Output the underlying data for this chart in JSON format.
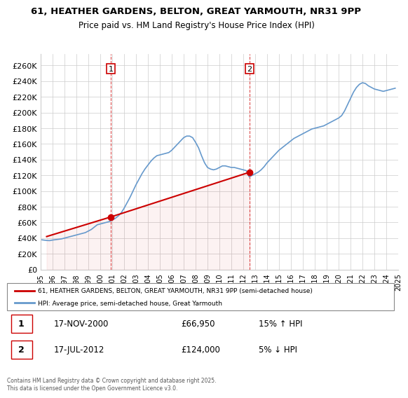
{
  "title": "61, HEATHER GARDENS, BELTON, GREAT YARMOUTH, NR31 9PP",
  "subtitle": "Price paid vs. HM Land Registry's House Price Index (HPI)",
  "xlabel": "",
  "ylabel": "",
  "yticks": [
    0,
    20000,
    40000,
    60000,
    80000,
    100000,
    120000,
    140000,
    160000,
    180000,
    200000,
    220000,
    240000,
    260000
  ],
  "ytick_labels": [
    "£0",
    "£20K",
    "£40K",
    "£60K",
    "£80K",
    "£100K",
    "£120K",
    "£140K",
    "£160K",
    "£180K",
    "£200K",
    "£220K",
    "£240K",
    "£260K"
  ],
  "ylim": [
    0,
    275000
  ],
  "xlim_year": [
    1995,
    2025
  ],
  "xtick_years": [
    1995,
    1996,
    1997,
    1998,
    1999,
    2000,
    2001,
    2002,
    2003,
    2004,
    2005,
    2006,
    2007,
    2008,
    2009,
    2010,
    2011,
    2012,
    2013,
    2014,
    2015,
    2016,
    2017,
    2018,
    2019,
    2020,
    2021,
    2022,
    2023,
    2024,
    2025
  ],
  "red_line_color": "#cc0000",
  "blue_line_color": "#6699cc",
  "grid_color": "#cccccc",
  "background_color": "#ffffff",
  "marker1_year": 2000.88,
  "marker1_value": 66950,
  "marker1_label": "1",
  "marker2_year": 2012.54,
  "marker2_value": 124000,
  "marker2_label": "2",
  "legend1_text": "61, HEATHER GARDENS, BELTON, GREAT YARMOUTH, NR31 9PP (semi-detached house)",
  "legend2_text": "HPI: Average price, semi-detached house, Great Yarmouth",
  "annotation1_num": "1",
  "annotation1_date": "17-NOV-2000",
  "annotation1_price": "£66,950",
  "annotation1_hpi": "15% ↑ HPI",
  "annotation2_num": "2",
  "annotation2_date": "17-JUL-2012",
  "annotation2_price": "£124,000",
  "annotation2_hpi": "5% ↓ HPI",
  "footer_text": "Contains HM Land Registry data © Crown copyright and database right 2025.\nThis data is licensed under the Open Government Licence v3.0.",
  "hpi_data": {
    "years": [
      1995.0,
      1995.25,
      1995.5,
      1995.75,
      1996.0,
      1996.25,
      1996.5,
      1996.75,
      1997.0,
      1997.25,
      1997.5,
      1997.75,
      1998.0,
      1998.25,
      1998.5,
      1998.75,
      1999.0,
      1999.25,
      1999.5,
      1999.75,
      2000.0,
      2000.25,
      2000.5,
      2000.75,
      2001.0,
      2001.25,
      2001.5,
      2001.75,
      2002.0,
      2002.25,
      2002.5,
      2002.75,
      2003.0,
      2003.25,
      2003.5,
      2003.75,
      2004.0,
      2004.25,
      2004.5,
      2004.75,
      2005.0,
      2005.25,
      2005.5,
      2005.75,
      2006.0,
      2006.25,
      2006.5,
      2006.75,
      2007.0,
      2007.25,
      2007.5,
      2007.75,
      2008.0,
      2008.25,
      2008.5,
      2008.75,
      2009.0,
      2009.25,
      2009.5,
      2009.75,
      2010.0,
      2010.25,
      2010.5,
      2010.75,
      2011.0,
      2011.25,
      2011.5,
      2011.75,
      2012.0,
      2012.25,
      2012.5,
      2012.75,
      2013.0,
      2013.25,
      2013.5,
      2013.75,
      2014.0,
      2014.25,
      2014.5,
      2014.75,
      2015.0,
      2015.25,
      2015.5,
      2015.75,
      2016.0,
      2016.25,
      2016.5,
      2016.75,
      2017.0,
      2017.25,
      2017.5,
      2017.75,
      2018.0,
      2018.25,
      2018.5,
      2018.75,
      2019.0,
      2019.25,
      2019.5,
      2019.75,
      2020.0,
      2020.25,
      2020.5,
      2020.75,
      2021.0,
      2021.25,
      2021.5,
      2021.75,
      2022.0,
      2022.25,
      2022.5,
      2022.75,
      2023.0,
      2023.25,
      2023.5,
      2023.75,
      2024.0,
      2024.25,
      2024.5,
      2024.75
    ],
    "values": [
      38000,
      37500,
      37000,
      36800,
      37500,
      38000,
      38500,
      39000,
      40000,
      41000,
      42000,
      43000,
      44000,
      45000,
      46000,
      47000,
      49000,
      51000,
      54000,
      57000,
      58000,
      59000,
      60000,
      61000,
      63000,
      65000,
      68000,
      72000,
      78000,
      85000,
      92000,
      100000,
      108000,
      115000,
      122000,
      128000,
      133000,
      138000,
      142000,
      145000,
      146000,
      147000,
      148000,
      149000,
      152000,
      156000,
      160000,
      164000,
      168000,
      170000,
      170000,
      168000,
      162000,
      155000,
      145000,
      136000,
      130000,
      128000,
      127000,
      128000,
      130000,
      132000,
      132000,
      131000,
      130000,
      130000,
      129000,
      128000,
      127000,
      126000,
      118000,
      120000,
      122000,
      124000,
      127000,
      131000,
      136000,
      140000,
      144000,
      148000,
      152000,
      155000,
      158000,
      161000,
      164000,
      167000,
      169000,
      171000,
      173000,
      175000,
      177000,
      179000,
      180000,
      181000,
      182000,
      183000,
      185000,
      187000,
      189000,
      191000,
      193000,
      196000,
      202000,
      210000,
      218000,
      226000,
      232000,
      236000,
      238000,
      237000,
      234000,
      232000,
      230000,
      229000,
      228000,
      227000,
      228000,
      229000,
      230000,
      231000
    ]
  },
  "price_paid_data": {
    "years": [
      1995.5,
      2000.88,
      2012.54
    ],
    "values": [
      42000,
      66950,
      124000
    ]
  }
}
